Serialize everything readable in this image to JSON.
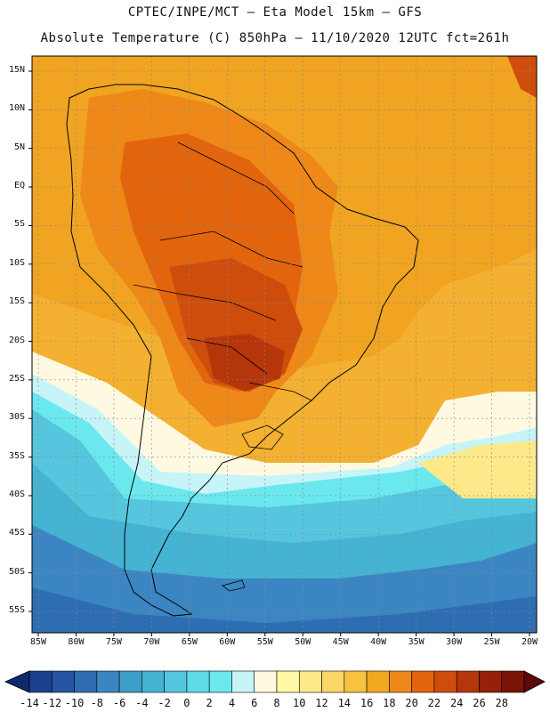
{
  "header": {
    "line1": "CPTEC/INPE/MCT –  Eta Model 15km – GFS",
    "line2": "Absolute Temperature (C) 850hPa – 11/10/2020 12UTC fct=261h"
  },
  "map": {
    "lat_labels": [
      "15N",
      "10N",
      "5N",
      "EQ",
      "5S",
      "10S",
      "15S",
      "20S",
      "25S",
      "30S",
      "35S",
      "40S",
      "45S",
      "50S",
      "55S"
    ],
    "lon_labels": [
      "85W",
      "80W",
      "75W",
      "70W",
      "65W",
      "60W",
      "55W",
      "50W",
      "45W",
      "40W",
      "35W",
      "30W",
      "25W",
      "20W"
    ],
    "lat_range": [
      15,
      -55
    ],
    "lon_range": [
      -85,
      -20
    ]
  },
  "colorbar": {
    "labels": [
      "-14",
      "-12",
      "-10",
      "-8",
      "-6",
      "-4",
      "-2",
      "0",
      "2",
      "4",
      "6",
      "8",
      "10",
      "12",
      "14",
      "16",
      "18",
      "20",
      "22",
      "24",
      "26",
      "28"
    ],
    "colors": [
      "#1d3f8f",
      "#2554a2",
      "#2f6db3",
      "#3b86c2",
      "#3d9fc9",
      "#45b3d2",
      "#56c6de",
      "#5fdbe9",
      "#6be8ee",
      "#c6f4f8",
      "#fff9e1",
      "#fff8a4",
      "#fde98a",
      "#fbd768",
      "#f6c23f",
      "#f2a820",
      "#ee8818",
      "#e2650e",
      "#cf4d0c",
      "#b6360c",
      "#952108",
      "#7a1407"
    ]
  }
}
